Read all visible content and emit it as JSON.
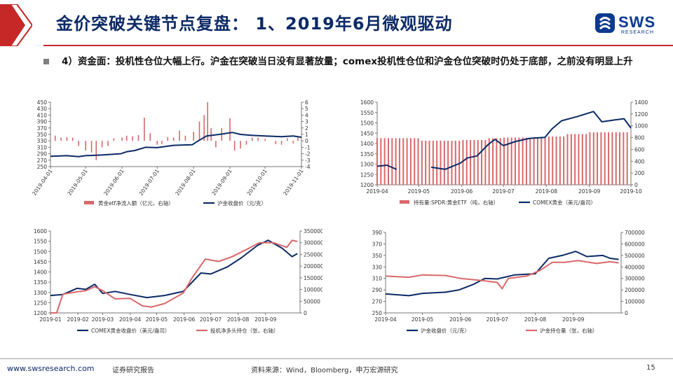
{
  "header": {
    "title": "金价突破关键节点复盘： 1、2019年6月微观驱动",
    "logo_name": "SWS",
    "logo_sub": "RESEARCH",
    "accent": "#c62828",
    "brand": "#0b3a8e"
  },
  "bullet": {
    "text": "4）资金面：投机性仓位大幅上行。沪金在突破当日没有显著放量；comex投机性仓位和沪金仓位突破时仍处于底部，之前没有明显上升"
  },
  "footer": {
    "site": "www.swsresearch.com",
    "report": "证券研究报告",
    "source": "资料来源：Wind，Bloomberg，申万宏源研究",
    "page": "15"
  },
  "chart_data": [
    {
      "type": "bar+line",
      "bar_color": "#d9686b",
      "line_color": "#0c2a66",
      "y_left_ticks": [
        250,
        270,
        290,
        310,
        330,
        350,
        370,
        390,
        410,
        430,
        450
      ],
      "y_left_range": [
        250,
        450
      ],
      "y_right_ticks": [
        -4,
        -3,
        -2,
        -1,
        0,
        1,
        2,
        3,
        4,
        5,
        6
      ],
      "y_right_range": [
        -4,
        6
      ],
      "x_ticks": [
        "2019-04-01",
        "2019-05-01",
        "2019-06-01",
        "2019-07-01",
        "2019-08-01",
        "2019-09-01",
        "2019-10-01",
        "2019-11-01"
      ],
      "x_range": [
        "2019-04-01",
        "2019-11-01"
      ],
      "line": {
        "name": "沪金收盘价（元/克）",
        "axis": "left",
        "points": [
          [
            "2019-04-01",
            282
          ],
          [
            "2019-04-15",
            284
          ],
          [
            "2019-04-25",
            281
          ],
          [
            "2019-05-01",
            284
          ],
          [
            "2019-05-15",
            286
          ],
          [
            "2019-05-31",
            290
          ],
          [
            "2019-06-05",
            296
          ],
          [
            "2019-06-12",
            300
          ],
          [
            "2019-06-21",
            310
          ],
          [
            "2019-07-01",
            309
          ],
          [
            "2019-07-15",
            316
          ],
          [
            "2019-07-31",
            318
          ],
          [
            "2019-08-05",
            330
          ],
          [
            "2019-08-12",
            345
          ],
          [
            "2019-08-23",
            350
          ],
          [
            "2019-09-03",
            356
          ],
          [
            "2019-09-10",
            350
          ],
          [
            "2019-09-20",
            347
          ],
          [
            "2019-10-01",
            345
          ],
          [
            "2019-10-15",
            343
          ],
          [
            "2019-10-25",
            345
          ],
          [
            "2019-11-01",
            341
          ]
        ]
      },
      "bars": {
        "name": "黄金etf净流入额（亿元，右轴）",
        "axis": "right",
        "points": [
          [
            "2019-04-05",
            0.8
          ],
          [
            "2019-04-10",
            0.5
          ],
          [
            "2019-04-15",
            0.6
          ],
          [
            "2019-04-20",
            0.5
          ],
          [
            "2019-04-25",
            -0.8
          ],
          [
            "2019-05-01",
            -1.5
          ],
          [
            "2019-05-06",
            -1.8
          ],
          [
            "2019-05-10",
            -3
          ],
          [
            "2019-05-15",
            -1
          ],
          [
            "2019-05-20",
            -0.8
          ],
          [
            "2019-05-25",
            0.4
          ],
          [
            "2019-06-01",
            0.5
          ],
          [
            "2019-06-05",
            0.8
          ],
          [
            "2019-06-10",
            0.7
          ],
          [
            "2019-06-15",
            0.9
          ],
          [
            "2019-06-20",
            3.6
          ],
          [
            "2019-06-25",
            1.2
          ],
          [
            "2019-07-01",
            -0.6
          ],
          [
            "2019-07-05",
            -0.5
          ],
          [
            "2019-07-10",
            0.6
          ],
          [
            "2019-07-15",
            0.5
          ],
          [
            "2019-07-20",
            1.6
          ],
          [
            "2019-07-25",
            0.8
          ],
          [
            "2019-08-01",
            1.4
          ],
          [
            "2019-08-06",
            3
          ],
          [
            "2019-08-10",
            4
          ],
          [
            "2019-08-13",
            6
          ],
          [
            "2019-08-16",
            2
          ],
          [
            "2019-08-20",
            -1
          ],
          [
            "2019-08-25",
            2
          ],
          [
            "2019-09-01",
            3.5
          ],
          [
            "2019-09-05",
            -1.5
          ],
          [
            "2019-09-10",
            -1.2
          ],
          [
            "2019-09-15",
            -0.6
          ],
          [
            "2019-09-20",
            0.5
          ],
          [
            "2019-09-25",
            0.5
          ],
          [
            "2019-10-01",
            0.3
          ],
          [
            "2019-10-10",
            -0.5
          ],
          [
            "2019-10-15",
            -0.6
          ],
          [
            "2019-10-20",
            0.4
          ],
          [
            "2019-10-25",
            -0.4
          ],
          [
            "2019-10-29",
            0.5
          ]
        ]
      }
    },
    {
      "type": "bar+line",
      "bar_color": "#d9686b",
      "line_color": "#0c2a66",
      "y_left_ticks": [
        1200,
        1250,
        1300,
        1350,
        1400,
        1450,
        1500,
        1550,
        1600
      ],
      "y_left_range": [
        1200,
        1600
      ],
      "y_right_ticks": [
        0,
        200,
        400,
        600,
        800,
        1000,
        1200,
        1400
      ],
      "y_right_range": [
        0,
        1400
      ],
      "x_ticks": [
        "2019-04",
        "2019-05",
        "2019-06",
        "2019-07",
        "2019-08",
        "2019-09",
        "2019-10"
      ],
      "x_range": [
        "2019-04-01",
        "2019-10-01"
      ],
      "bars": {
        "name": "持有量:SPDR:黄金ETF（吨，右轴）",
        "axis": "right",
        "points": [
          [
            "2019-04-01",
            790
          ],
          [
            "2019-05-01",
            748
          ],
          [
            "2019-06-01",
            760
          ],
          [
            "2019-06-20",
            790
          ],
          [
            "2019-07-01",
            800
          ],
          [
            "2019-08-01",
            820
          ],
          [
            "2019-08-15",
            860
          ],
          [
            "2019-09-01",
            890
          ],
          [
            "2019-10-01",
            915
          ]
        ]
      },
      "line": {
        "name": "COMEX黄金（美元/盎司）",
        "axis": "left",
        "points": [
          [
            "2019-04-01",
            1290
          ],
          [
            "2019-04-08",
            1295
          ],
          [
            "2019-04-15",
            1275
          ],
          [
            "2019-04-20",
            null
          ],
          [
            "2019-04-28",
            1280
          ],
          [
            "2019-05-03",
            null
          ],
          [
            "2019-05-10",
            1285
          ],
          [
            "2019-05-20",
            1275
          ],
          [
            "2019-05-31",
            1305
          ],
          [
            "2019-06-05",
            1330
          ],
          [
            "2019-06-12",
            1340
          ],
          [
            "2019-06-20",
            1395
          ],
          [
            "2019-06-25",
            1420
          ],
          [
            "2019-07-01",
            1390
          ],
          [
            "2019-07-10",
            1410
          ],
          [
            "2019-07-20",
            1425
          ],
          [
            "2019-07-31",
            1430
          ],
          [
            "2019-08-05",
            1470
          ],
          [
            "2019-08-12",
            1510
          ],
          [
            "2019-08-23",
            1530
          ],
          [
            "2019-09-04",
            1555
          ],
          [
            "2019-09-10",
            1505
          ],
          [
            "2019-09-20",
            1515
          ],
          [
            "2019-09-26",
            1520
          ],
          [
            "2019-10-01",
            1475
          ]
        ]
      }
    },
    {
      "type": "line",
      "y_left_ticks": [
        1200,
        1250,
        1300,
        1350,
        1400,
        1450,
        1500,
        1550,
        1600
      ],
      "y_left_range": [
        1200,
        1600
      ],
      "y_right_ticks": [
        0,
        50000,
        100000,
        150000,
        200000,
        250000,
        300000,
        350000
      ],
      "y_right_range": [
        0,
        350000
      ],
      "x_ticks": [
        "2019-01",
        "2019-02",
        "2019-03",
        "2019-04",
        "2019-05",
        "2019-06",
        "2019-07",
        "2019-08",
        "2019-09"
      ],
      "x_range": [
        "2019-01-01",
        "2019-10-10"
      ],
      "series": [
        {
          "name": "COMEX黄金收盘价（美元/盎司）",
          "axis": "left",
          "color": "#0c2a66",
          "points": [
            [
              "2019-01-01",
              1285
            ],
            [
              "2019-01-15",
              1290
            ],
            [
              "2019-01-31",
              1320
            ],
            [
              "2019-02-10",
              1315
            ],
            [
              "2019-02-20",
              1340
            ],
            [
              "2019-03-01",
              1295
            ],
            [
              "2019-03-15",
              1305
            ],
            [
              "2019-04-01",
              1290
            ],
            [
              "2019-04-20",
              1275
            ],
            [
              "2019-05-10",
              1285
            ],
            [
              "2019-05-31",
              1305
            ],
            [
              "2019-06-20",
              1395
            ],
            [
              "2019-07-01",
              1390
            ],
            [
              "2019-07-20",
              1425
            ],
            [
              "2019-08-05",
              1470
            ],
            [
              "2019-08-23",
              1530
            ],
            [
              "2019-09-04",
              1555
            ],
            [
              "2019-09-20",
              1515
            ],
            [
              "2019-10-01",
              1475
            ],
            [
              "2019-10-07",
              1490
            ]
          ]
        },
        {
          "name": "投机净多头持仓（张，右轴）",
          "axis": "right",
          "color": "#d9686b",
          "points": [
            [
              "2019-01-01",
              100
            ],
            [
              "2019-01-08",
              100
            ],
            [
              "2019-01-15",
              80000
            ],
            [
              "2019-01-31",
              90000
            ],
            [
              "2019-02-10",
              95000
            ],
            [
              "2019-02-20",
              112000
            ],
            [
              "2019-03-01",
              95000
            ],
            [
              "2019-03-15",
              60000
            ],
            [
              "2019-04-01",
              62000
            ],
            [
              "2019-04-15",
              30000
            ],
            [
              "2019-04-25",
              25000
            ],
            [
              "2019-05-10",
              40000
            ],
            [
              "2019-05-31",
              85000
            ],
            [
              "2019-06-10",
              150000
            ],
            [
              "2019-06-25",
              230000
            ],
            [
              "2019-07-10",
              220000
            ],
            [
              "2019-07-25",
              240000
            ],
            [
              "2019-08-10",
              270000
            ],
            [
              "2019-08-25",
              300000
            ],
            [
              "2019-09-10",
              300000
            ],
            [
              "2019-09-25",
              280000
            ],
            [
              "2019-10-01",
              310000
            ],
            [
              "2019-10-07",
              305000
            ]
          ]
        }
      ]
    },
    {
      "type": "line",
      "y_left_ticks": [
        250,
        270,
        290,
        310,
        330,
        350,
        370,
        390
      ],
      "y_left_range": [
        250,
        390
      ],
      "y_right_ticks": [
        0,
        100000,
        200000,
        300000,
        400000,
        500000,
        600000,
        700000
      ],
      "y_right_range": [
        0,
        700000
      ],
      "x_ticks": [
        "2019-04",
        "2019-05",
        "2019-06",
        "2019-07",
        "2019-08",
        "2019-09"
      ],
      "x_range": [
        "2019-04-01",
        "2019-10-10"
      ],
      "series": [
        {
          "name": "沪金收盘价（元/克）",
          "axis": "left",
          "color": "#0c2a66",
          "points": [
            [
              "2019-04-01",
              283
            ],
            [
              "2019-04-20",
              280
            ],
            [
              "2019-05-01",
              284
            ],
            [
              "2019-05-20",
              286
            ],
            [
              "2019-05-31",
              290
            ],
            [
              "2019-06-12",
              300
            ],
            [
              "2019-06-21",
              310
            ],
            [
              "2019-07-01",
              309
            ],
            [
              "2019-07-15",
              316
            ],
            [
              "2019-08-01",
              318
            ],
            [
              "2019-08-12",
              345
            ],
            [
              "2019-08-23",
              350
            ],
            [
              "2019-09-03",
              357
            ],
            [
              "2019-09-12",
              348
            ],
            [
              "2019-09-25",
              350
            ],
            [
              "2019-10-01",
              345
            ],
            [
              "2019-10-08",
              343
            ]
          ]
        },
        {
          "name": "沪金持仓量（张，右轴）",
          "axis": "right",
          "color": "#d9686b",
          "points": [
            [
              "2019-04-01",
              320000
            ],
            [
              "2019-04-20",
              310000
            ],
            [
              "2019-05-01",
              330000
            ],
            [
              "2019-05-20",
              325000
            ],
            [
              "2019-06-01",
              300000
            ],
            [
              "2019-06-20",
              280000
            ],
            [
              "2019-07-01",
              265000
            ],
            [
              "2019-07-05",
              210000
            ],
            [
              "2019-07-10",
              300000
            ],
            [
              "2019-07-25",
              320000
            ],
            [
              "2019-08-05",
              370000
            ],
            [
              "2019-08-15",
              440000
            ],
            [
              "2019-08-25",
              440000
            ],
            [
              "2019-09-05",
              455000
            ],
            [
              "2019-09-20",
              430000
            ],
            [
              "2019-10-01",
              445000
            ],
            [
              "2019-10-08",
              435000
            ]
          ]
        }
      ]
    }
  ]
}
